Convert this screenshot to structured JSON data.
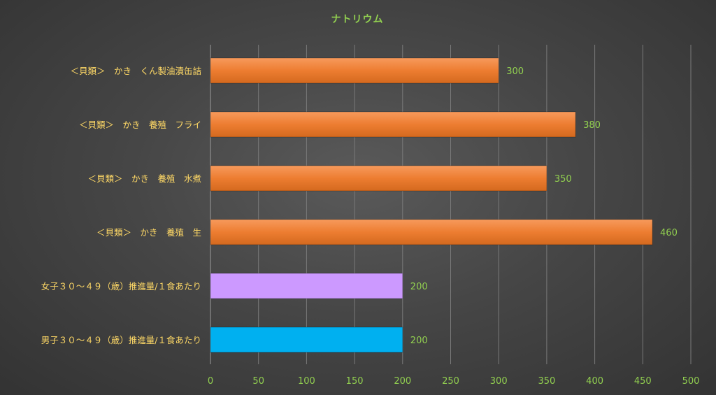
{
  "chart_data": {
    "type": "bar",
    "orientation": "horizontal",
    "title": "ナトリウム",
    "categories": [
      "＜貝類＞　かき　くん製油漬缶詰",
      "＜貝類＞　かき　養殖　フライ",
      "＜貝類＞　かき　養殖　水煮",
      "＜貝類＞　かき　養殖　生",
      "女子３０～４９（歳）推進量/１食あたり",
      "男子３０～４９（歳）推進量/１食あたり"
    ],
    "values": [
      300,
      380,
      350,
      460,
      200,
      200
    ],
    "data_labels": [
      "300",
      "380",
      "350",
      "460",
      "200",
      "200"
    ],
    "bar_colors": [
      "#ed7d31",
      "#ed7d31",
      "#ed7d31",
      "#ed7d31",
      "#cc99ff",
      "#00b0f0"
    ],
    "xlim": [
      0,
      500
    ],
    "xticks": [
      0,
      50,
      100,
      150,
      200,
      250,
      300,
      350,
      400,
      450,
      500
    ],
    "xlabel": "",
    "ylabel": "",
    "grid": true,
    "legend": "none",
    "colors": {
      "title": "#92d050",
      "category_labels": "#ffd966",
      "tick_labels": "#92d050",
      "data_labels": "#92d050"
    }
  }
}
